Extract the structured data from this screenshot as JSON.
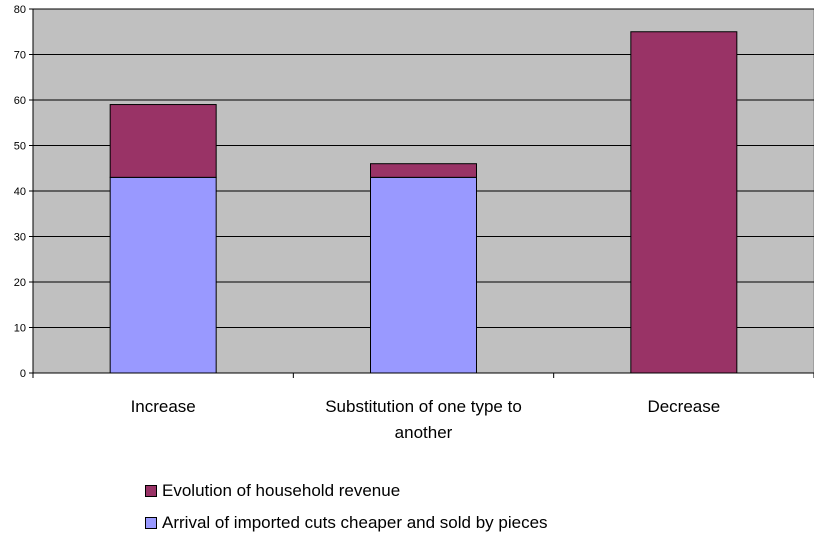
{
  "chart_data": {
    "type": "bar",
    "stacked": true,
    "categories": [
      [
        "Increase"
      ],
      [
        "Substitution of one type to",
        "another"
      ],
      [
        "Decrease"
      ]
    ],
    "series": [
      {
        "name": "Arrival of imported cuts cheaper and sold by pieces",
        "values": [
          43,
          43,
          0
        ],
        "color": "#9999ff"
      },
      {
        "name": "Evolution of household revenue",
        "values": [
          16,
          3,
          75
        ],
        "color": "#993366"
      }
    ],
    "ylim": [
      0,
      80
    ],
    "yticks": [
      0,
      10,
      20,
      30,
      40,
      50,
      60,
      70,
      80
    ],
    "grid": true,
    "plot_background": "#c0c0c0",
    "legend_position": "bottom",
    "legend_order": [
      1,
      0
    ]
  }
}
